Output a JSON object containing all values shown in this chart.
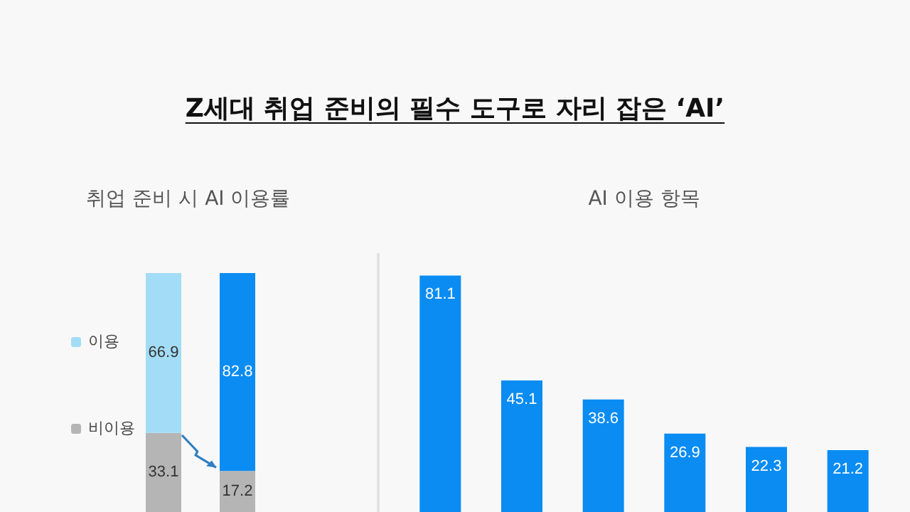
{
  "chart_data": [
    {
      "type": "bar",
      "title": "Z세대 취업 준비의 필수 도구로 자리 잡은 ‘AI’",
      "subtitle": "취업 준비 시 AI 이용률",
      "categories": [
        null,
        null
      ],
      "stacked": true,
      "data_labels": true,
      "legend": "left",
      "tick_labels": false,
      "series": [
        {
          "name": "비이용",
          "values": [
            33.1,
            17.2
          ],
          "colors": [
            "#b5b5b5",
            "#b5b5b5"
          ]
        },
        {
          "name": "이용",
          "values": [
            66.9,
            82.8
          ],
          "colors": [
            "#a3dcf6",
            "#0a8cf2"
          ]
        }
      ]
    },
    {
      "type": "bar",
      "title": "AI 이용 항목",
      "categories": [
        null,
        null,
        null,
        null,
        null,
        null
      ],
      "values": [
        81.1,
        45.1,
        38.6,
        26.9,
        22.3,
        21.2
      ],
      "color": "#0a8cf2",
      "data_labels": true,
      "tick_labels": false
    }
  ]
}
